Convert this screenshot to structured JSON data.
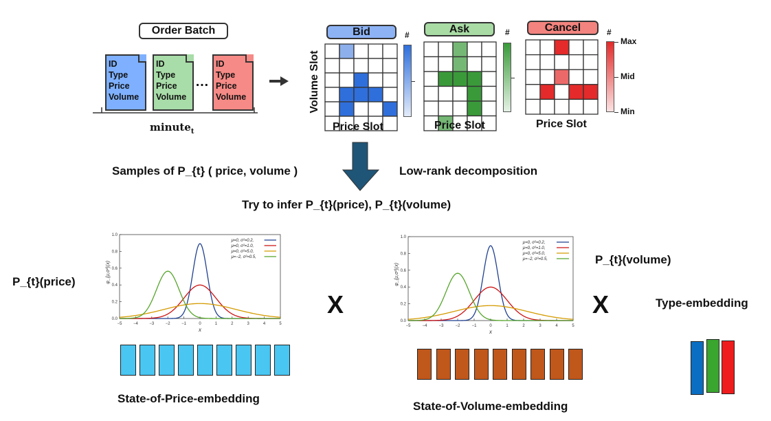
{
  "order_batch": {
    "title": "Order Batch",
    "documents": [
      {
        "fields": [
          "ID",
          "Type",
          "Price",
          "Volume"
        ],
        "color": "#7eb0ff"
      },
      {
        "fields": [
          "ID",
          "Type",
          "Price",
          "Volume"
        ],
        "color": "#a8dca8"
      },
      {
        "fields": [
          "ID",
          "Type",
          "Price",
          "Volume"
        ],
        "color": "#f58a86"
      }
    ],
    "ellipsis": "…",
    "time_label": "minute",
    "time_sub": "t"
  },
  "grids": {
    "y_axis_label": "Volume Slot",
    "x_axis_label": "Price Slot",
    "count_symbol": "#",
    "scale_labels": [
      "Max",
      "Mid",
      "Min"
    ],
    "panels": [
      {
        "title": "Bid",
        "title_fill": "#8db3f5",
        "color": "#2f6fdc",
        "cells": [
          [
            0,
            1,
            0,
            0,
            0
          ],
          [
            0,
            0,
            0,
            0,
            0
          ],
          [
            0,
            0,
            1,
            0,
            0
          ],
          [
            0,
            1,
            1,
            1,
            0
          ],
          [
            0,
            1,
            0,
            0,
            1
          ],
          [
            0,
            0,
            0,
            0,
            0
          ]
        ]
      },
      {
        "title": "Ask",
        "title_fill": "#a9dba5",
        "color": "#3a9a3a",
        "cells": [
          [
            0,
            0,
            1,
            0,
            0
          ],
          [
            0,
            0,
            1,
            0,
            0
          ],
          [
            0,
            1,
            1,
            1,
            0
          ],
          [
            0,
            0,
            0,
            1,
            0
          ],
          [
            0,
            0,
            0,
            1,
            0
          ],
          [
            0,
            1,
            0,
            0,
            0
          ]
        ]
      },
      {
        "title": "Cancel",
        "title_fill": "#f3837e",
        "color": "#e42a2a",
        "cells": [
          [
            0,
            0,
            1,
            0,
            0
          ],
          [
            0,
            0,
            0,
            0,
            0
          ],
          [
            0,
            0,
            1,
            0,
            0
          ],
          [
            0,
            1,
            0,
            1,
            1
          ],
          [
            0,
            0,
            0,
            0,
            0
          ]
        ]
      }
    ]
  },
  "flow": {
    "left_text": "Samples of P_{t} ( price, volume )",
    "right_text": "Low-rank decomposition",
    "infer_text": "Try to infer P_{t}(price), P_{t}(volume)"
  },
  "price": {
    "label": "P_{t}(price)",
    "embedding_label": "State-of-Price-embedding",
    "embedding_color": "#49c6f2",
    "embedding_count": 9
  },
  "volume": {
    "label": "P_{t}(volume)",
    "embedding_label": "State-of-Volume-embedding",
    "embedding_color": "#c0571b",
    "embedding_count": 9
  },
  "type_embedding": {
    "label": "Type-embedding",
    "colors": [
      "#0a6fc2",
      "#3aa52f",
      "#ee1c1c"
    ]
  },
  "multiply_symbol": "X",
  "gaussian_plot": {
    "x_tick_labels": [
      "−5",
      "−4",
      "−3",
      "−2",
      "−1",
      "0",
      "1",
      "2",
      "3",
      "4",
      "5"
    ],
    "y_tick_labels": [
      "0.0",
      "0.2",
      "0.4",
      "0.6",
      "0.8",
      "1.0"
    ],
    "xlabel": "x",
    "ylabel": "φ_{μ,σ²}(x)",
    "xlim": [
      -5,
      5
    ],
    "ylim": [
      0,
      1
    ],
    "series": [
      {
        "name": "μ=0,   σ²=0.2,",
        "mu": 0,
        "var": 0.2,
        "color": "#1f3f8f"
      },
      {
        "name": "μ=0,   σ²=1.0,",
        "mu": 0,
        "var": 1.0,
        "color": "#cc1111"
      },
      {
        "name": "μ=0,   σ²=5.0,",
        "mu": 0,
        "var": 5.0,
        "color": "#d49a00"
      },
      {
        "name": "μ=−2,  σ²=0.5,",
        "mu": -2,
        "var": 0.5,
        "color": "#55a52a"
      }
    ]
  }
}
